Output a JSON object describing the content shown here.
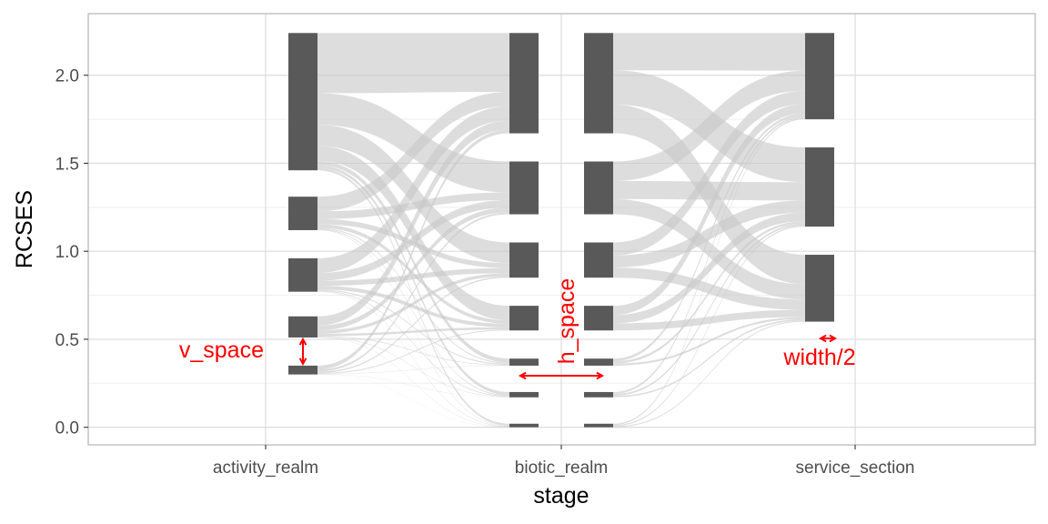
{
  "chart_data": {
    "type": "alluvial",
    "xlabel": "stage",
    "ylabel": "RCSES",
    "x_categories": [
      "activity_realm",
      "biotic_realm",
      "service_section"
    ],
    "y_ticks": [
      "0.0",
      "0.5",
      "1.0",
      "1.5",
      "2.0"
    ],
    "y_tick_values": [
      0,
      0.5,
      1.0,
      1.5,
      2.0
    ],
    "ylim": [
      -0.1,
      2.35
    ],
    "grid": true,
    "colors": {
      "node": "#595959",
      "flow": "#c8c8c8",
      "grid_major": "#dcdcdc",
      "grid_minor": "#efefef",
      "panel_border": "#b3b3b3",
      "annotation": "#ff0000"
    },
    "stages": [
      {
        "name": "activity_realm",
        "nodes": [
          {
            "y0": 0.3,
            "y1": 0.35
          },
          {
            "y0": 0.51,
            "y1": 0.63
          },
          {
            "y0": 0.77,
            "y1": 0.96
          },
          {
            "y0": 1.12,
            "y1": 1.31
          },
          {
            "y0": 1.46,
            "y1": 2.24
          }
        ]
      },
      {
        "name": "biotic_realm",
        "nodes": [
          {
            "y0": 0.0,
            "y1": 0.02
          },
          {
            "y0": 0.17,
            "y1": 0.2
          },
          {
            "y0": 0.35,
            "y1": 0.39
          },
          {
            "y0": 0.55,
            "y1": 0.69
          },
          {
            "y0": 0.85,
            "y1": 1.05
          },
          {
            "y0": 1.21,
            "y1": 1.51
          },
          {
            "y0": 1.67,
            "y1": 2.24
          }
        ]
      },
      {
        "name": "service_section",
        "nodes": [
          {
            "y0": 0.6,
            "y1": 0.98
          },
          {
            "y0": 1.14,
            "y1": 1.59
          },
          {
            "y0": 1.75,
            "y1": 2.24
          }
        ]
      }
    ],
    "annotations": [
      "v_space",
      "h_space",
      "width/2"
    ]
  }
}
